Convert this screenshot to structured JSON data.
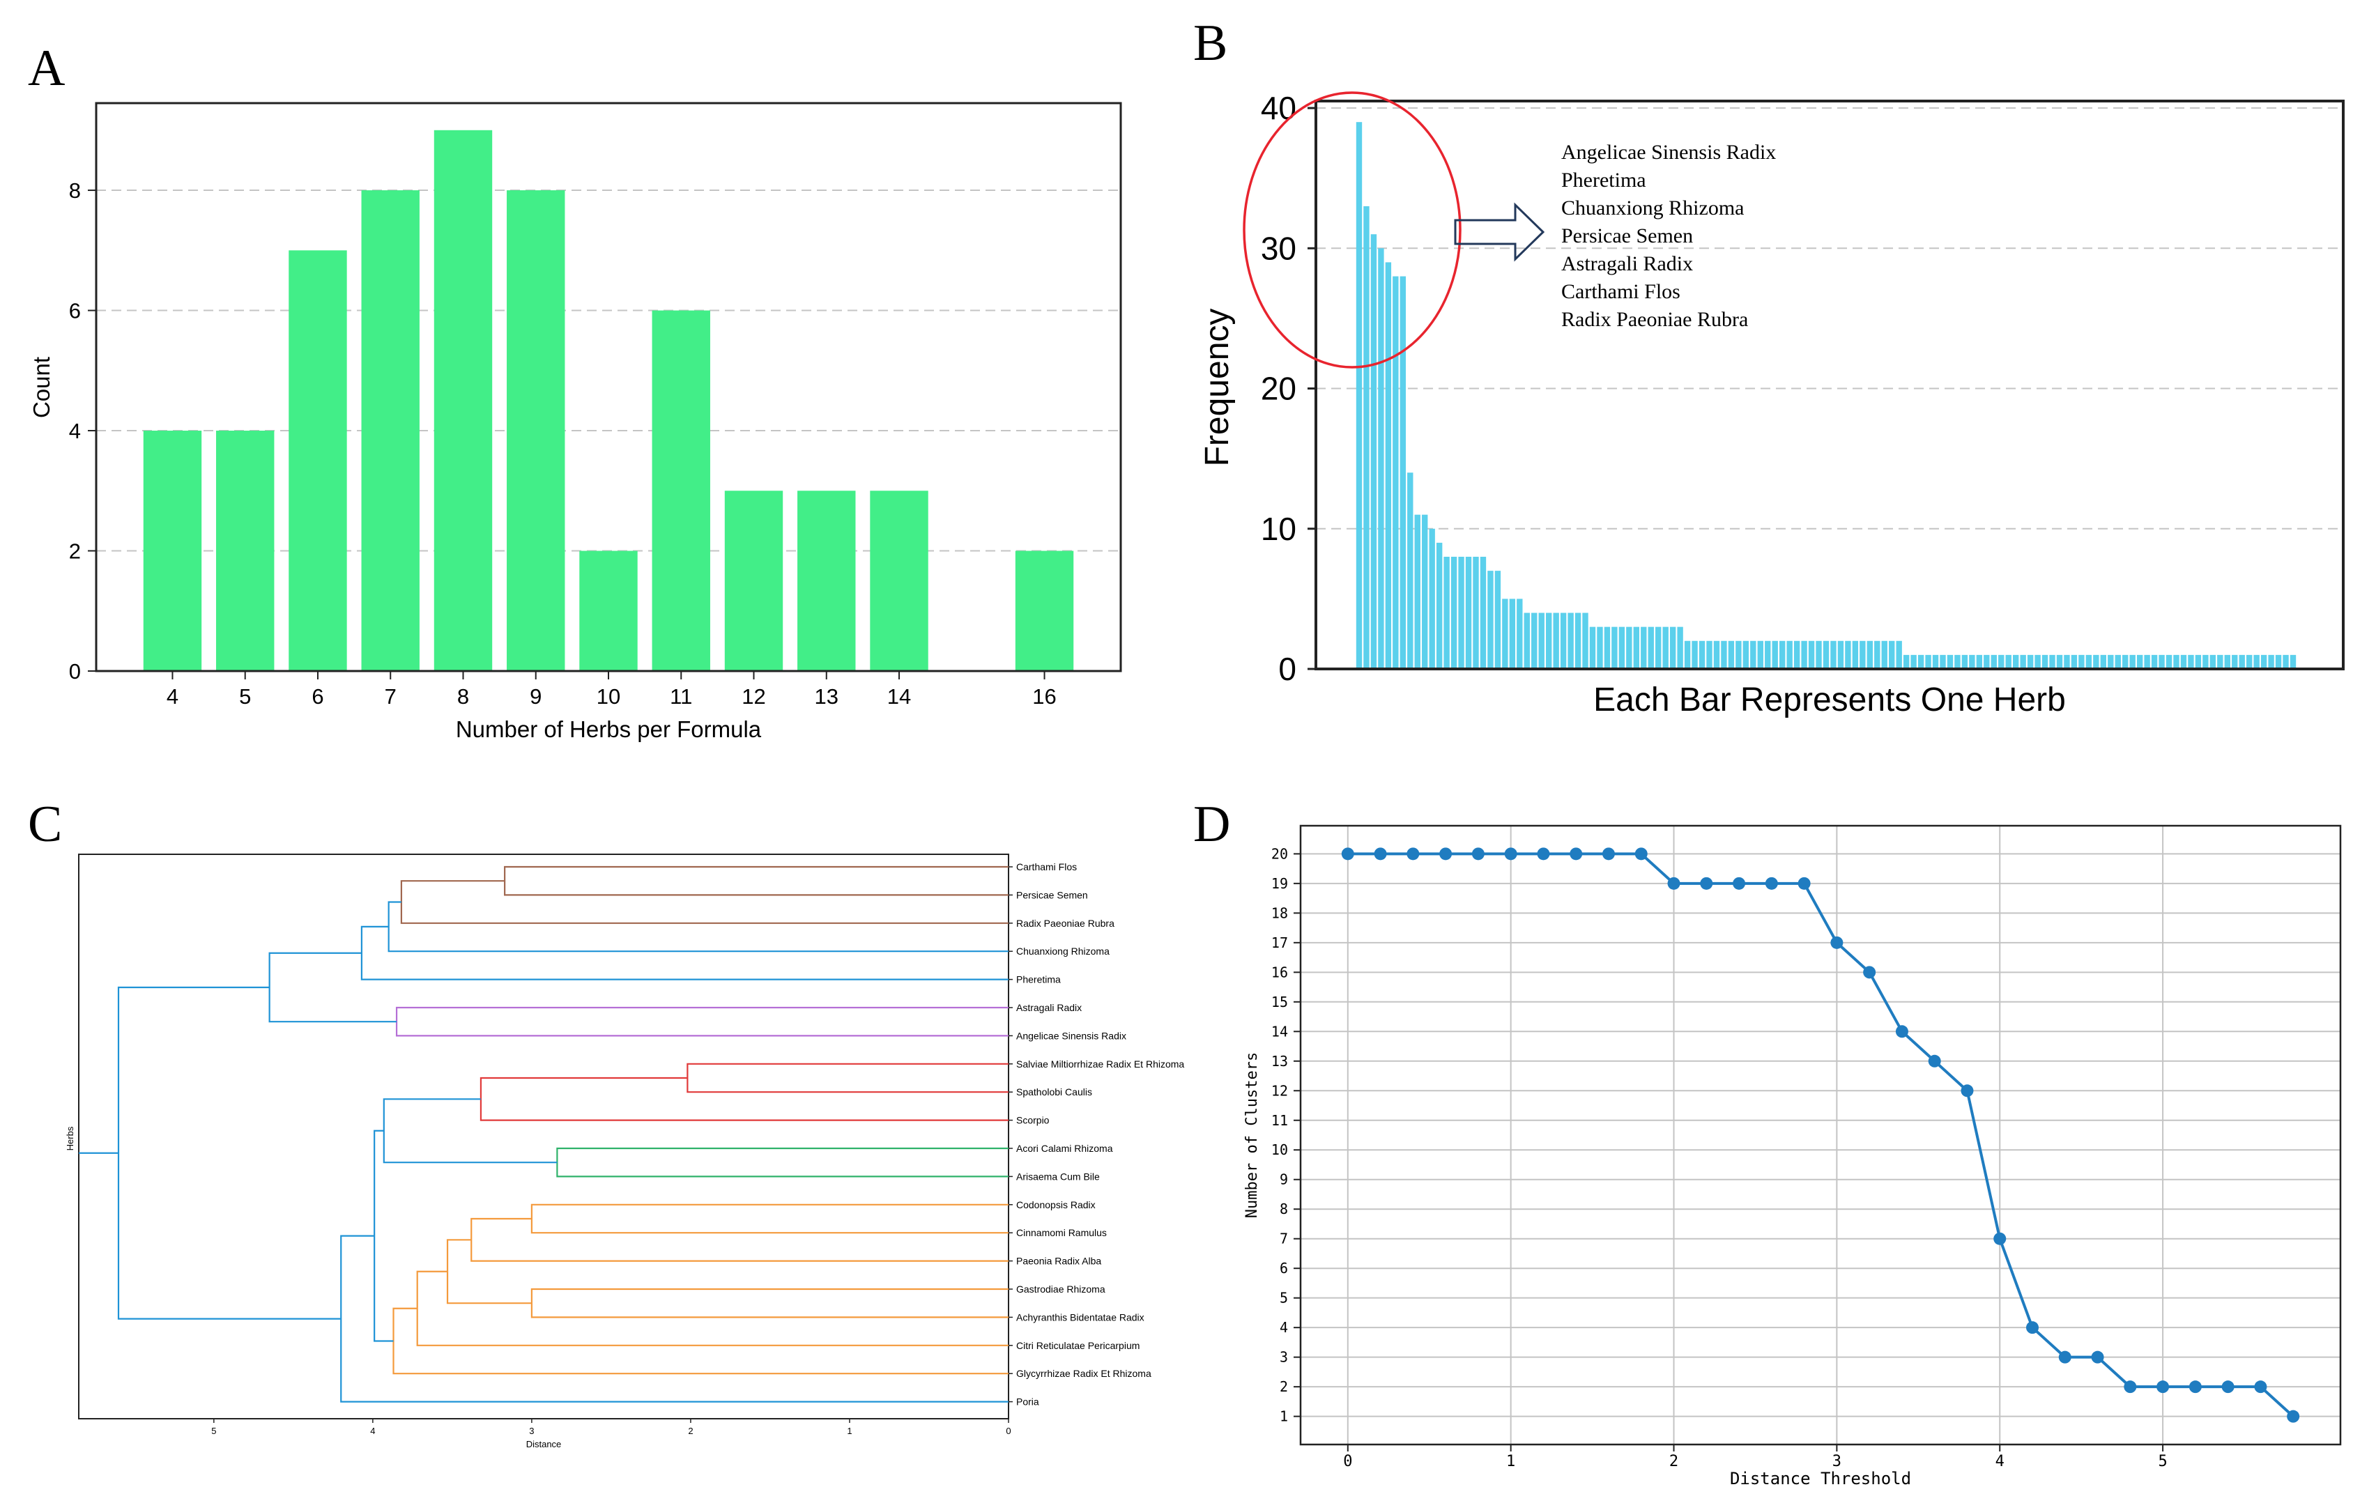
{
  "panels": [
    "A",
    "B",
    "C",
    "D"
  ],
  "colors": {
    "bar_green": "#42ee88",
    "bar_cyan": "#5bd0ec",
    "circle_red": "#e8242e",
    "arrow_navy": "#23395b",
    "line_blue": "#1f7cc0",
    "grid": "#c4c4c4",
    "dendro_blue": "#1f93d6",
    "dendro_brown": "#a0674f",
    "dendro_purple": "#b56fd6",
    "dendro_red": "#e13a3a",
    "dendro_green": "#2fb26a",
    "dendro_orange": "#f49a3c"
  },
  "chart_data": [
    {
      "panel": "A",
      "type": "bar",
      "categories": [
        "4",
        "5",
        "6",
        "7",
        "8",
        "9",
        "10",
        "11",
        "12",
        "13",
        "14",
        "16"
      ],
      "x": [
        4,
        5,
        6,
        7,
        8,
        9,
        10,
        11,
        12,
        13,
        14,
        16
      ],
      "values": [
        4,
        4,
        7,
        8,
        9,
        8,
        2,
        6,
        3,
        3,
        3,
        2
      ],
      "title": "",
      "xlabel": "Number of Herbs per Formula",
      "ylabel": "Count",
      "xlim": [
        2.95,
        17.05
      ],
      "ylim": [
        0,
        9.45
      ],
      "yticks": [
        0,
        2,
        4,
        6,
        8
      ],
      "grid": "horizontal dashed"
    },
    {
      "panel": "B",
      "type": "bar",
      "title": "",
      "xlabel": "Each Bar Represents One Herb",
      "ylabel": "Frequency",
      "values": [
        39,
        33,
        31,
        30,
        29,
        28,
        28,
        14,
        11,
        11,
        10,
        9,
        8,
        8,
        8,
        8,
        8,
        8,
        7,
        7,
        5,
        5,
        5,
        4,
        4,
        4,
        4,
        4,
        4,
        4,
        4,
        4,
        3,
        3,
        3,
        3,
        3,
        3,
        3,
        3,
        3,
        3,
        3,
        3,
        3,
        2,
        2,
        2,
        2,
        2,
        2,
        2,
        2,
        2,
        2,
        2,
        2,
        2,
        2,
        2,
        2,
        2,
        2,
        2,
        2,
        2,
        2,
        2,
        2,
        2,
        2,
        2,
        2,
        2,
        2,
        1,
        1,
        1,
        1,
        1,
        1,
        1,
        1,
        1,
        1,
        1,
        1,
        1,
        1,
        1,
        1,
        1,
        1,
        1,
        1,
        1,
        1,
        1,
        1,
        1,
        1,
        1,
        1,
        1,
        1,
        1,
        1,
        1,
        1,
        1,
        1,
        1,
        1,
        1,
        1,
        1,
        1,
        1,
        1,
        1,
        1,
        1,
        1,
        1,
        1,
        1,
        1,
        1,
        1
      ],
      "ylim": [
        0,
        40.5
      ],
      "yticks": [
        0,
        10,
        20,
        30,
        40
      ],
      "grid": "horizontal dashed",
      "annotation": {
        "highlight": "top 7 herbs circled",
        "herbs": [
          "Angelicae Sinensis Radix",
          "Pheretima",
          "Chuanxiong Rhizoma",
          "Persicae Semen",
          "Astragali Radix",
          "Carthami Flos",
          "Radix Paeoniae Rubra"
        ]
      }
    },
    {
      "panel": "C",
      "type": "dendrogram",
      "title": "",
      "xlabel": "Distance",
      "ylabel": "Herbs",
      "xlim": [
        5.85,
        0
      ],
      "xticks": [
        5,
        4,
        3,
        2,
        1,
        0
      ],
      "leaves": [
        "Carthami Flos",
        "Persicae Semen",
        "Radix Paeoniae Rubra",
        "Chuanxiong Rhizoma",
        "Pheretima",
        "Astragali Radix",
        "Angelicae Sinensis Radix",
        "Salviae Miltiorrhizae Radix Et Rhizoma",
        "Spatholobi Caulis",
        "Scorpio",
        "Acori Calami Rhizoma",
        "Arisaema Cum Bile",
        "Codonopsis Radix",
        "Cinnamomi Ramulus",
        "Paeonia Radix Alba",
        "Gastrodiae Rhizoma",
        "Achyranthis Bidentatae Radix",
        "Citri Reticulatae Pericarpium",
        "Glycyrrhizae Radix Et Rhizoma",
        "Poria"
      ],
      "merges": [
        {
          "a": 0,
          "b": 1,
          "height": 3.17,
          "color": "dendro_brown"
        },
        {
          "a": 20,
          "b": 2,
          "height": 3.82,
          "color": "dendro_brown"
        },
        {
          "a": 21,
          "b": 3,
          "height": 3.9,
          "color": "dendro_blue"
        },
        {
          "a": 22,
          "b": 4,
          "height": 4.07,
          "color": "dendro_blue"
        },
        {
          "a": 5,
          "b": 6,
          "height": 3.85,
          "color": "dendro_purple"
        },
        {
          "a": 23,
          "b": 24,
          "height": 4.65,
          "color": "dendro_blue"
        },
        {
          "a": 7,
          "b": 8,
          "height": 2.02,
          "color": "dendro_red"
        },
        {
          "a": 26,
          "b": 9,
          "height": 3.32,
          "color": "dendro_red"
        },
        {
          "a": 10,
          "b": 11,
          "height": 2.84,
          "color": "dendro_green"
        },
        {
          "a": 27,
          "b": 28,
          "height": 3.93,
          "color": "dendro_blue"
        },
        {
          "a": 12,
          "b": 13,
          "height": 3.0,
          "color": "dendro_orange"
        },
        {
          "a": 30,
          "b": 14,
          "height": 3.38,
          "color": "dendro_orange"
        },
        {
          "a": 15,
          "b": 16,
          "height": 3.0,
          "color": "dendro_orange"
        },
        {
          "a": 31,
          "b": 32,
          "height": 3.53,
          "color": "dendro_orange"
        },
        {
          "a": 33,
          "b": 17,
          "height": 3.72,
          "color": "dendro_orange"
        },
        {
          "a": 34,
          "b": 18,
          "height": 3.87,
          "color": "dendro_orange"
        },
        {
          "a": 29,
          "b": 35,
          "height": 3.99,
          "color": "dendro_blue"
        },
        {
          "a": 36,
          "b": 19,
          "height": 4.2,
          "color": "dendro_blue"
        },
        {
          "a": 25,
          "b": 37,
          "height": 5.6,
          "color": "dendro_blue"
        }
      ]
    },
    {
      "panel": "D",
      "type": "line",
      "title": "",
      "xlabel": "Distance Threshold",
      "ylabel": "Number of Clusters",
      "x": [
        0,
        0.2,
        0.4,
        0.6,
        0.8,
        1.0,
        1.2,
        1.4,
        1.6,
        1.8,
        2.0,
        2.2,
        2.4,
        2.6,
        2.8,
        3.0,
        3.2,
        3.4,
        3.6,
        3.8,
        4.0,
        4.2,
        4.4,
        4.6,
        4.8,
        5.0,
        5.2,
        5.4,
        5.6,
        5.8
      ],
      "y": [
        20,
        20,
        20,
        20,
        20,
        20,
        20,
        20,
        20,
        20,
        19,
        19,
        19,
        19,
        19,
        17,
        16,
        14,
        13,
        12,
        7,
        4,
        3,
        3,
        2,
        2,
        2,
        2,
        2,
        1
      ],
      "xlim": [
        -0.29,
        6.09
      ],
      "ylim": [
        0.05,
        20.95
      ],
      "xticks": [
        0,
        1,
        2,
        3,
        4,
        5
      ],
      "yticks": [
        1,
        2,
        3,
        4,
        5,
        6,
        7,
        8,
        9,
        10,
        11,
        12,
        13,
        14,
        15,
        16,
        17,
        18,
        19,
        20
      ],
      "grid": true
    }
  ]
}
